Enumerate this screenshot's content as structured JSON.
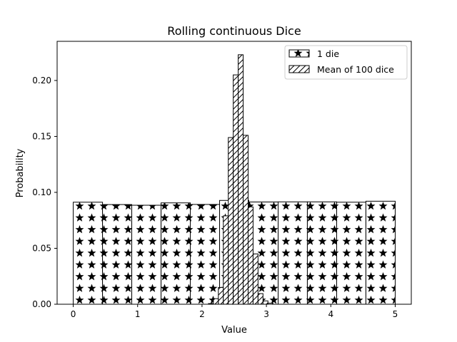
{
  "chart_data": {
    "type": "bar",
    "title": "Rolling continuous Dice",
    "xlabel": "Value",
    "ylabel": "Probability",
    "xlim": [
      -0.25,
      5.25
    ],
    "ylim": [
      0,
      0.235
    ],
    "xticks": [
      0,
      1,
      2,
      3,
      4,
      5
    ],
    "xtick_labels": [
      "0",
      "1",
      "2",
      "3",
      "4",
      "5"
    ],
    "yticks": [
      0,
      0.05,
      0.1,
      0.15,
      0.2
    ],
    "ytick_labels": [
      "0.00",
      "0.05",
      "0.10",
      "0.15",
      "0.20"
    ],
    "grid": false,
    "legend_position": "top-right",
    "series": [
      {
        "name": "1 die",
        "hatch": "stars",
        "bins": [
          [
            0.0,
            0.455,
            0.0912
          ],
          [
            0.455,
            0.909,
            0.0891
          ],
          [
            0.909,
            1.364,
            0.0885
          ],
          [
            1.364,
            1.818,
            0.0906
          ],
          [
            1.818,
            2.273,
            0.0892
          ],
          [
            2.273,
            2.727,
            0.0928
          ],
          [
            2.727,
            3.182,
            0.0914
          ],
          [
            3.182,
            3.636,
            0.0915
          ],
          [
            3.636,
            4.091,
            0.0915
          ],
          [
            4.091,
            4.545,
            0.0912
          ],
          [
            4.545,
            5.0,
            0.0921
          ]
        ]
      },
      {
        "name": "Mean of 100 dice",
        "hatch": "diagonal",
        "bins": [
          [
            2.1,
            2.177,
            0.0006
          ],
          [
            2.177,
            2.254,
            0.005
          ],
          [
            2.254,
            2.331,
            0.015
          ],
          [
            2.331,
            2.408,
            0.079
          ],
          [
            2.408,
            2.485,
            0.149
          ],
          [
            2.485,
            2.562,
            0.205
          ],
          [
            2.562,
            2.639,
            0.223
          ],
          [
            2.639,
            2.716,
            0.151
          ],
          [
            2.716,
            2.793,
            0.087
          ],
          [
            2.793,
            2.87,
            0.045
          ],
          [
            2.87,
            2.947,
            0.0095
          ],
          [
            2.947,
            3.024,
            0.003
          ],
          [
            3.024,
            3.101,
            0.001
          ]
        ]
      }
    ]
  }
}
